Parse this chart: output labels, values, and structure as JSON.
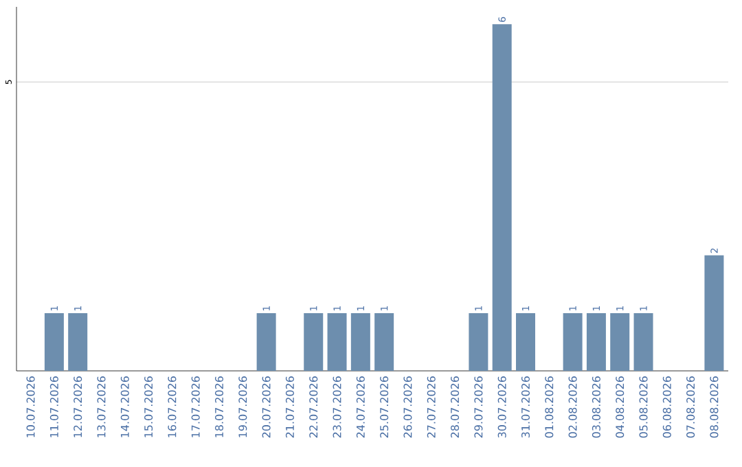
{
  "chart_data": {
    "type": "bar",
    "categories": [
      "10.07.2026",
      "11.07.2026",
      "12.07.2026",
      "13.07.2026",
      "14.07.2026",
      "15.07.2026",
      "16.07.2026",
      "17.07.2026",
      "18.07.2026",
      "19.07.2026",
      "20.07.2026",
      "21.07.2026",
      "22.07.2026",
      "23.07.2026",
      "24.07.2026",
      "25.07.2026",
      "26.07.2026",
      "27.07.2026",
      "28.07.2026",
      "29.07.2026",
      "30.07.2026",
      "31.07.2026",
      "01.08.2026",
      "02.08.2026",
      "03.08.2026",
      "04.08.2026",
      "05.08.2026",
      "06.08.2026",
      "07.08.2026",
      "08.08.2026"
    ],
    "values": [
      0,
      1,
      1,
      0,
      0,
      0,
      0,
      0,
      0,
      0,
      1,
      0,
      1,
      1,
      1,
      1,
      0,
      0,
      0,
      1,
      6,
      1,
      0,
      1,
      1,
      1,
      1,
      0,
      0,
      2
    ],
    "value_labels": [
      null,
      "1",
      "1",
      null,
      null,
      null,
      null,
      null,
      null,
      null,
      "1",
      null,
      "1",
      "1",
      "1",
      "1",
      null,
      null,
      null,
      "1",
      "6",
      "1",
      null,
      "1",
      "1",
      "1",
      "1",
      null,
      null,
      "2"
    ],
    "color": "#6d8eae",
    "ylim": [
      0,
      6.3
    ],
    "yticks": [
      5
    ],
    "grid": "y"
  }
}
